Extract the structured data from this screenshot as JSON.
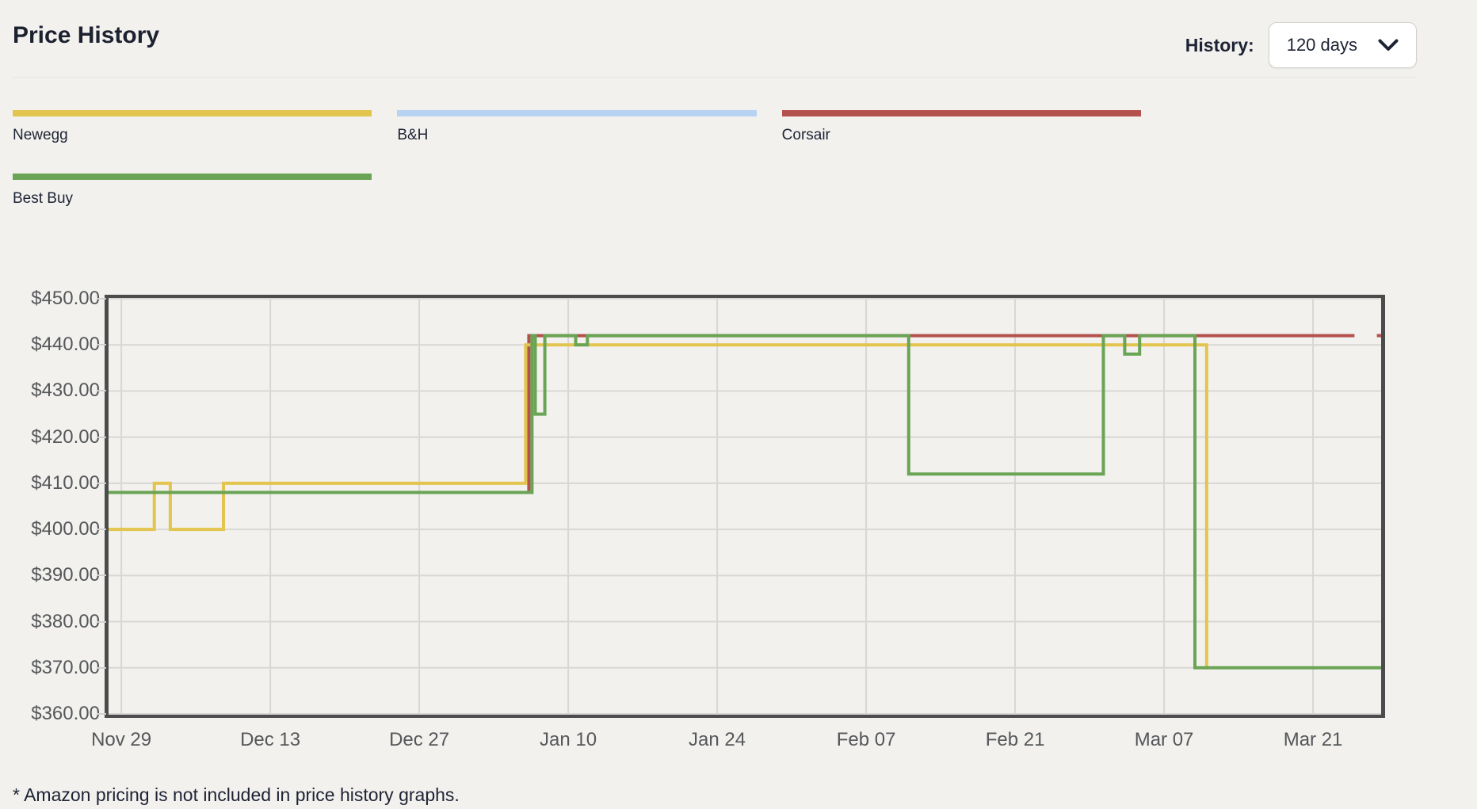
{
  "header": {
    "title": "Price History",
    "history_label": "History:",
    "history_value": "120 days"
  },
  "legend": [
    {
      "name": "Newegg",
      "color": "#e2c44f"
    },
    {
      "name": "B&H",
      "color": "#b6d3f2"
    },
    {
      "name": "Corsair",
      "color": "#b5514d"
    },
    {
      "name": "Best Buy",
      "color": "#6aa455"
    }
  ],
  "footnote": "* Amazon pricing is not included in price history graphs.",
  "colors": {
    "background": "#f2f1ee",
    "chart_border": "#4c4c4c",
    "gridline": "#d8d7d4",
    "axis_text": "#55575a"
  },
  "chart_data": {
    "type": "line",
    "step": true,
    "currency": "USD",
    "title": "Price History",
    "x_unit": "days from Nov 28",
    "x_range_days": [
      0,
      119.6
    ],
    "ylim": [
      360,
      450
    ],
    "grid": true,
    "legend_position": "top",
    "y_ticks": [
      {
        "price": 450,
        "label": "$450.00"
      },
      {
        "price": 440,
        "label": "$440.00"
      },
      {
        "price": 430,
        "label": "$430.00"
      },
      {
        "price": 420,
        "label": "$420.00"
      },
      {
        "price": 410,
        "label": "$410.00"
      },
      {
        "price": 400,
        "label": "$400.00"
      },
      {
        "price": 390,
        "label": "$390.00"
      },
      {
        "price": 380,
        "label": "$380.00"
      },
      {
        "price": 370,
        "label": "$370.00"
      },
      {
        "price": 360,
        "label": "$360.00"
      }
    ],
    "x_ticks": [
      {
        "day": 1.2,
        "label": "Nov 29"
      },
      {
        "day": 15.2,
        "label": "Dec 13"
      },
      {
        "day": 29.2,
        "label": "Dec 27"
      },
      {
        "day": 43.2,
        "label": "Jan 10"
      },
      {
        "day": 57.2,
        "label": "Jan 24"
      },
      {
        "day": 71.2,
        "label": "Feb 07"
      },
      {
        "day": 85.2,
        "label": "Feb 21"
      },
      {
        "day": 99.2,
        "label": "Mar 07"
      },
      {
        "day": 113.2,
        "label": "Mar 21"
      }
    ],
    "series": [
      {
        "name": "Corsair",
        "color": "#b5514d",
        "segments": [
          {
            "points": [
              [
                0,
                408
              ],
              [
                39.5,
                442
              ]
            ],
            "end_day": 117.1
          },
          {
            "points": [
              [
                119.2,
                442
              ]
            ],
            "end_day": 119.6
          }
        ]
      },
      {
        "name": "Newegg",
        "color": "#e2c44f",
        "segments": [
          {
            "points": [
              [
                0,
                400
              ],
              [
                4.3,
                410
              ],
              [
                5.8,
                400
              ],
              [
                10.8,
                410
              ],
              [
                39.2,
                440
              ],
              [
                103.2,
                370
              ]
            ],
            "end_day": 103.4
          }
        ]
      },
      {
        "name": "Best Buy",
        "color": "#6aa455",
        "segments": [
          {
            "points": [
              [
                0,
                408
              ],
              [
                39.8,
                442
              ],
              [
                40.1,
                425
              ],
              [
                41.0,
                442
              ],
              [
                43.9,
                440
              ],
              [
                45.0,
                442
              ],
              [
                75.2,
                412
              ],
              [
                93.5,
                442
              ],
              [
                95.5,
                438
              ],
              [
                96.9,
                442
              ],
              [
                102.1,
                370
              ]
            ],
            "end_day": 119.6
          }
        ]
      },
      {
        "name": "B&H",
        "color": "#b6d3f2",
        "segments": []
      }
    ]
  }
}
